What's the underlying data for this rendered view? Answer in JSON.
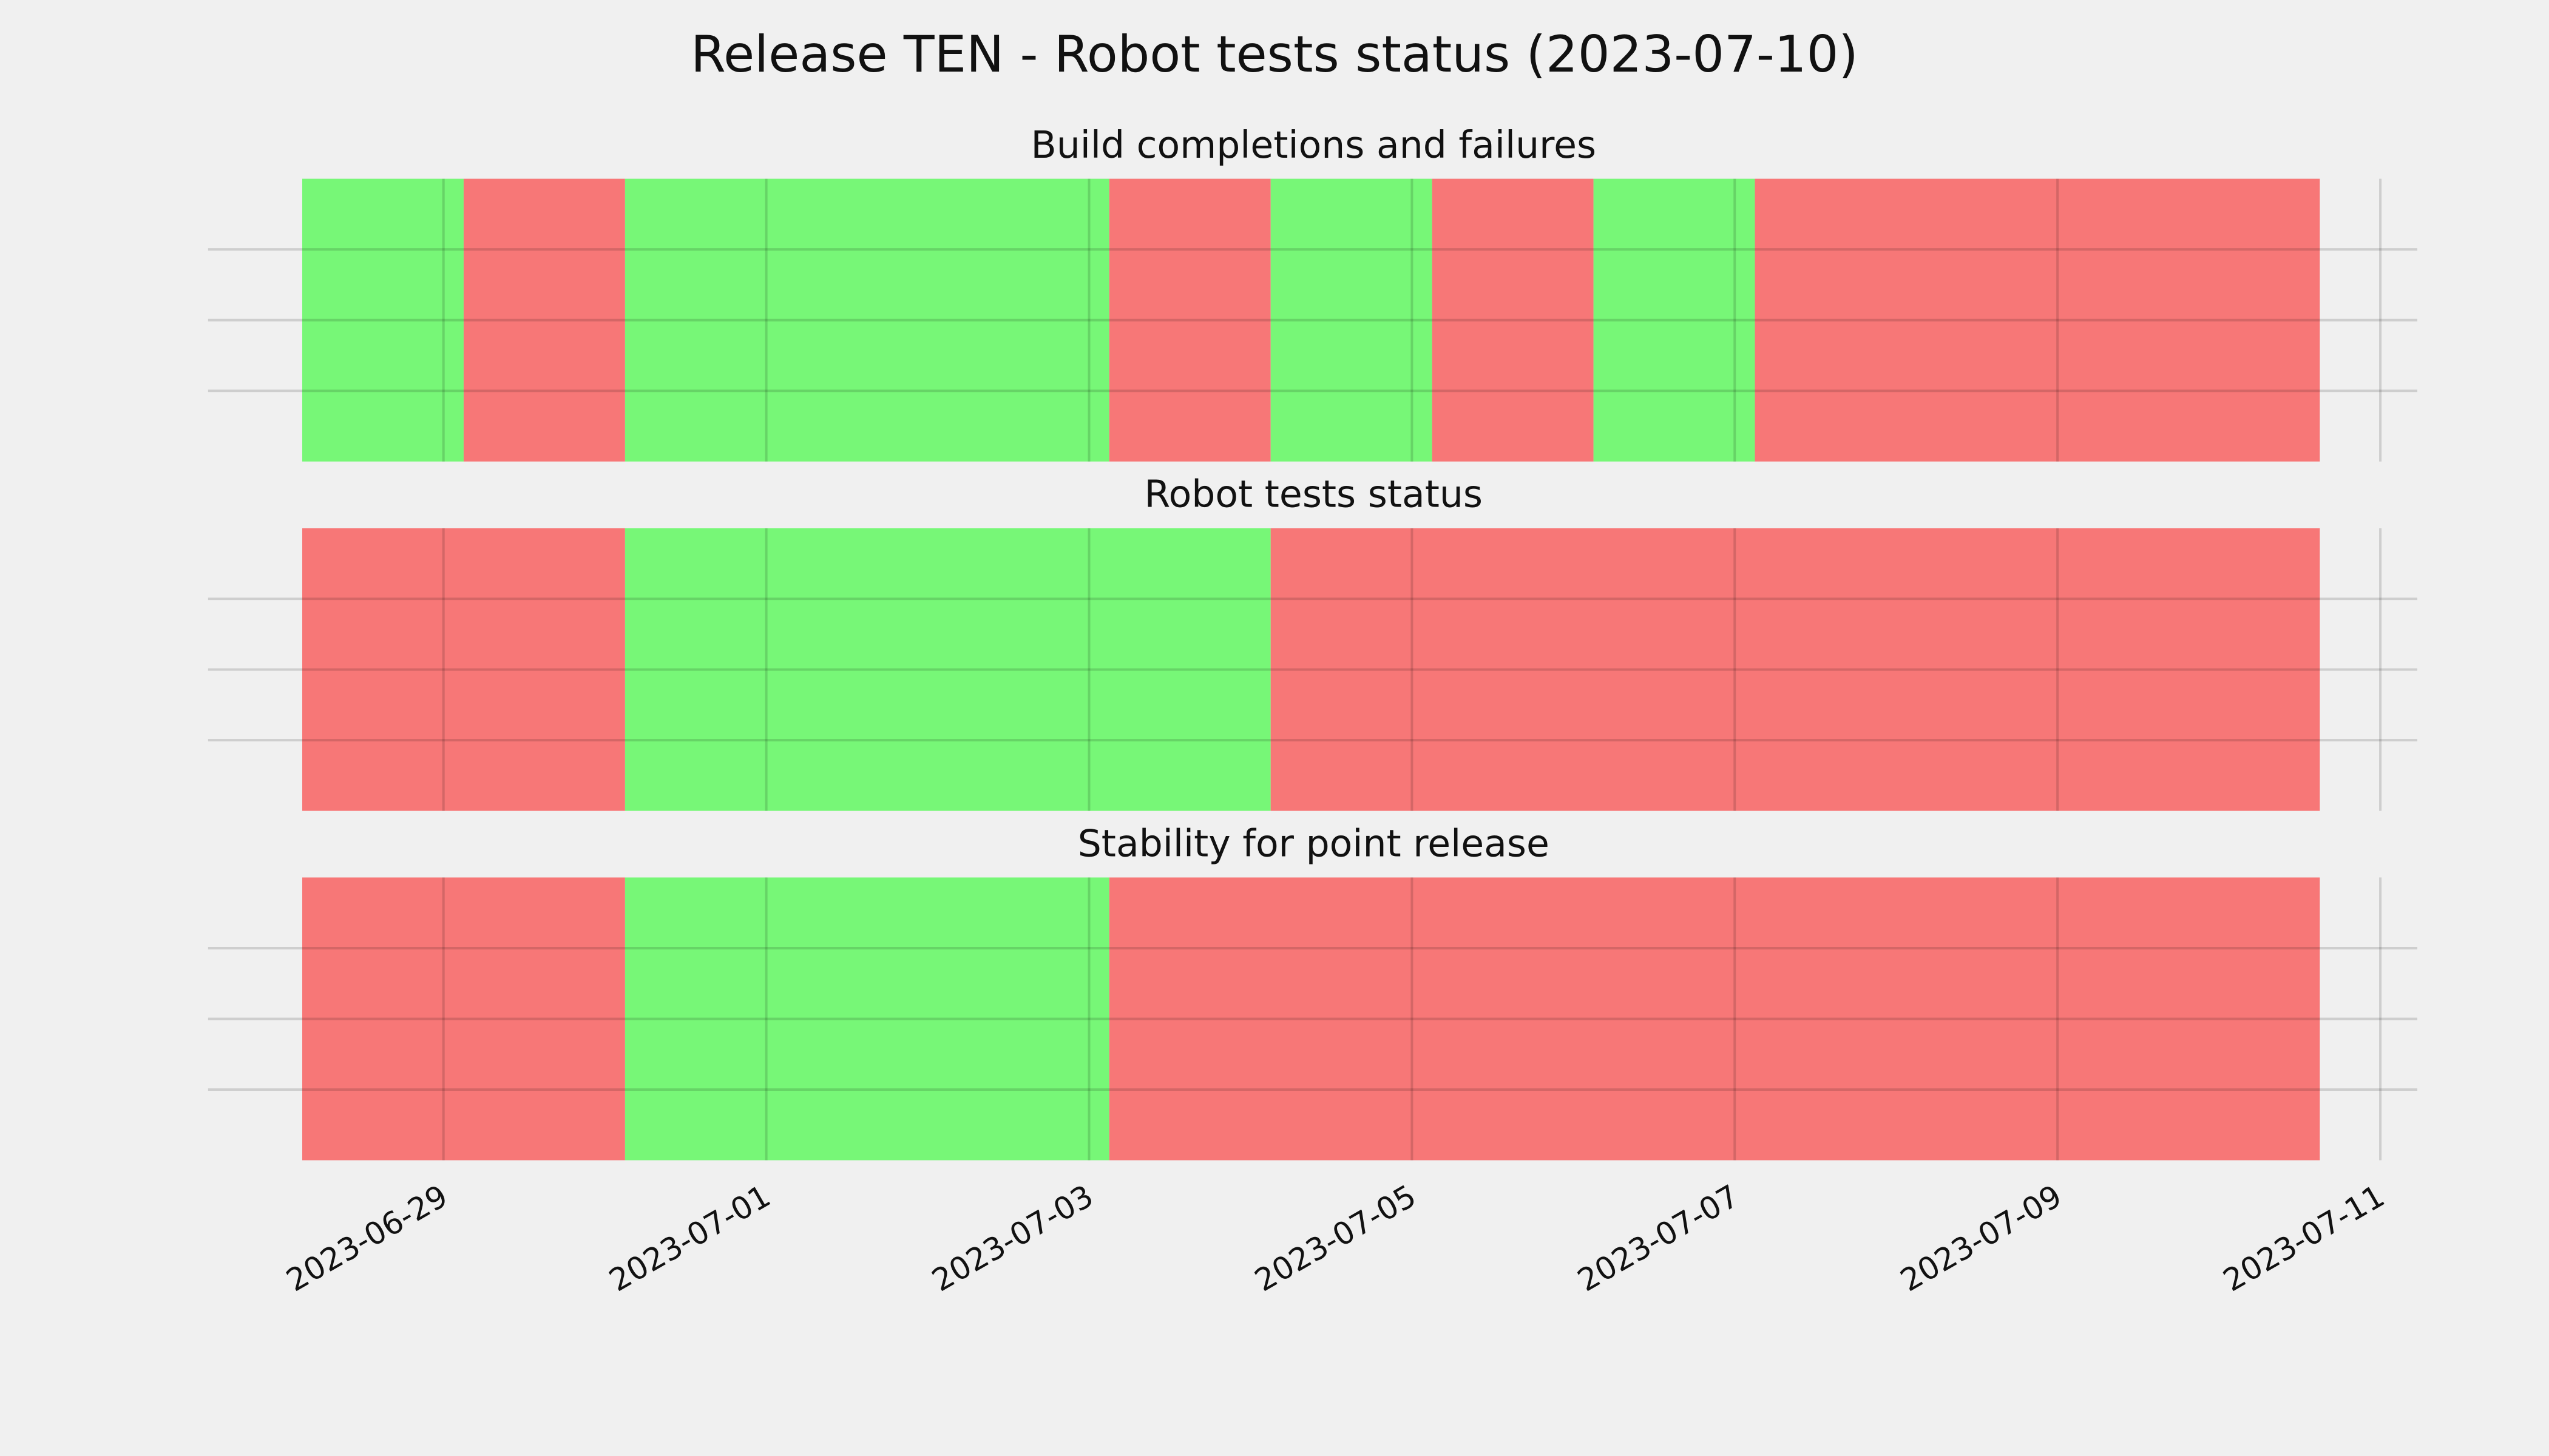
{
  "title": "Release TEN - Robot tests status (2023-07-10)",
  "chart_data": [
    {
      "type": "span",
      "title": "Build completions and failures",
      "xlim": [
        "2023-06-27T13:00",
        "2023-07-11T05:30"
      ],
      "xticks": [
        "2023-06-29",
        "2023-07-01",
        "2023-07-03",
        "2023-07-05",
        "2023-07-07",
        "2023-07-09",
        "2023-07-11"
      ],
      "ylim": [
        0,
        1
      ],
      "yticks": [
        0.25,
        0.5,
        0.75
      ],
      "grid": true,
      "spans": [
        {
          "start": "2023-06-28T03:00",
          "end": "2023-06-29T03:00",
          "color": "#77f777"
        },
        {
          "start": "2023-06-29T03:00",
          "end": "2023-06-30T03:00",
          "color": "#f77777"
        },
        {
          "start": "2023-06-30T03:00",
          "end": "2023-07-03T03:00",
          "color": "#77f777"
        },
        {
          "start": "2023-07-03T03:00",
          "end": "2023-07-04T03:00",
          "color": "#f77777"
        },
        {
          "start": "2023-07-04T03:00",
          "end": "2023-07-05T03:00",
          "color": "#77f777"
        },
        {
          "start": "2023-07-05T03:00",
          "end": "2023-07-06T03:00",
          "color": "#f77777"
        },
        {
          "start": "2023-07-06T03:00",
          "end": "2023-07-07T03:00",
          "color": "#77f777"
        },
        {
          "start": "2023-07-07T03:00",
          "end": "2023-07-10T15:00",
          "color": "#f77777"
        }
      ]
    },
    {
      "type": "span",
      "title": "Robot tests status",
      "xlim": [
        "2023-06-27T13:00",
        "2023-07-11T05:30"
      ],
      "xticks": [
        "2023-06-29",
        "2023-07-01",
        "2023-07-03",
        "2023-07-05",
        "2023-07-07",
        "2023-07-09",
        "2023-07-11"
      ],
      "ylim": [
        0,
        1
      ],
      "yticks": [
        0.25,
        0.5,
        0.75
      ],
      "grid": true,
      "spans": [
        {
          "start": "2023-06-28T03:00",
          "end": "2023-06-30T03:00",
          "color": "#f77777"
        },
        {
          "start": "2023-06-30T03:00",
          "end": "2023-07-04T03:00",
          "color": "#77f777"
        },
        {
          "start": "2023-07-04T03:00",
          "end": "2023-07-10T15:00",
          "color": "#f77777"
        }
      ]
    },
    {
      "type": "span",
      "title": "Stability for point release",
      "xlim": [
        "2023-06-27T13:00",
        "2023-07-11T05:30"
      ],
      "xticks": [
        "2023-06-29",
        "2023-07-01",
        "2023-07-03",
        "2023-07-05",
        "2023-07-07",
        "2023-07-09",
        "2023-07-11"
      ],
      "ylim": [
        0,
        1
      ],
      "yticks": [
        0.25,
        0.5,
        0.75
      ],
      "grid": true,
      "show_xtick_labels": true,
      "spans": [
        {
          "start": "2023-06-28T03:00",
          "end": "2023-06-30T03:00",
          "color": "#f77777"
        },
        {
          "start": "2023-06-30T03:00",
          "end": "2023-07-03T03:00",
          "color": "#77f777"
        },
        {
          "start": "2023-07-03T03:00",
          "end": "2023-07-10T15:00",
          "color": "#f77777"
        }
      ]
    }
  ]
}
